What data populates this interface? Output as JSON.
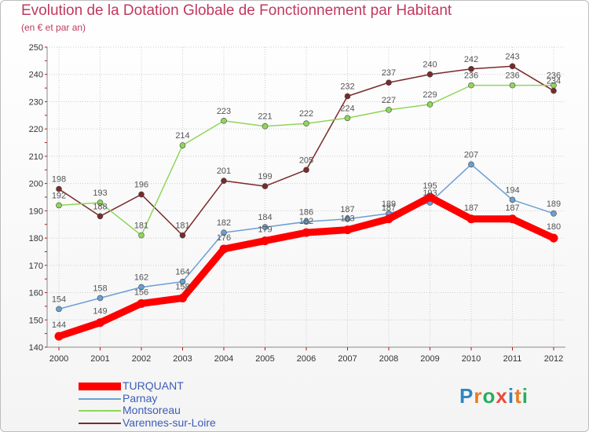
{
  "chart_data": {
    "type": "line",
    "title": "Evolution de la Dotation Globale de Fonctionnement par Habitant",
    "subtitle": "(en € et par an)",
    "xlabel": "",
    "ylabel": "",
    "ylim": [
      140,
      250
    ],
    "yticks": [
      140,
      150,
      160,
      170,
      180,
      190,
      200,
      210,
      220,
      230,
      240,
      250
    ],
    "categories": [
      "2000",
      "2001",
      "2002",
      "2003",
      "2004",
      "2005",
      "2006",
      "2007",
      "2008",
      "2009",
      "2010",
      "2011",
      "2012"
    ],
    "series": [
      {
        "name": "TURQUANT",
        "values": [
          144,
          149,
          156,
          158,
          176,
          179,
          182,
          183,
          187,
          195,
          187,
          187,
          180
        ],
        "color": "#ff0000",
        "label_color": "#555555"
      },
      {
        "name": "Parnay",
        "values": [
          154,
          158,
          162,
          164,
          182,
          184,
          186,
          187,
          189,
          193,
          207,
          194,
          189
        ],
        "color": "#6b9fd4",
        "label_color": "#555555"
      },
      {
        "name": "Montsoreau",
        "values": [
          192,
          193,
          181,
          214,
          223,
          221,
          222,
          224,
          227,
          229,
          236,
          236,
          236
        ],
        "color": "#8fd65a",
        "label_color": "#555555"
      },
      {
        "name": "Varennes-sur-Loire",
        "values": [
          198,
          188,
          196,
          181,
          201,
          199,
          205,
          232,
          237,
          240,
          242,
          243,
          234
        ],
        "color": "#7a2a2a",
        "label_color": "#555555"
      }
    ],
    "grid": true,
    "legend_position": "bottom-left"
  },
  "legend": {
    "items": [
      {
        "label": "TURQUANT"
      },
      {
        "label": "Parnay"
      },
      {
        "label": "Montsoreau"
      },
      {
        "label": "Varennes-sur-Loire"
      }
    ]
  },
  "logo": {
    "letters": [
      "P",
      "r",
      "o",
      "x",
      "i",
      "t",
      "i"
    ],
    "colors": [
      "#2e86c1",
      "#e67e22",
      "#27ae60",
      "#e74c3c",
      "#2e86c1",
      "#e67e22",
      "#27ae60"
    ]
  }
}
